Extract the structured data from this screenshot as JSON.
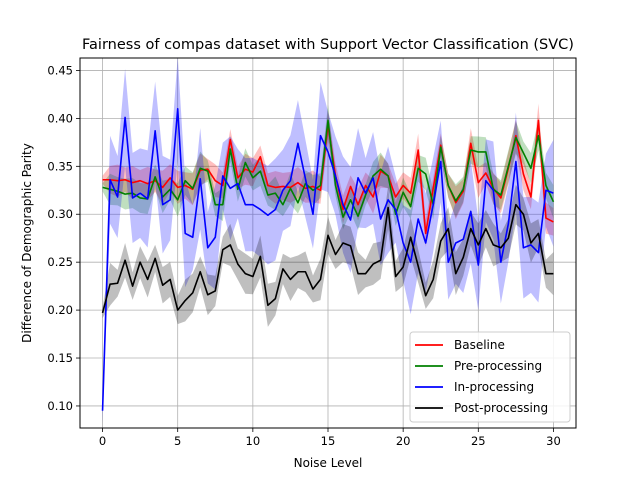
{
  "chart_data": {
    "type": "line",
    "title": "Fairness of compas dataset with Support Vector Classification (SVC)",
    "xlabel": "Noise Level",
    "ylabel": "Difference of Demographic Parity",
    "xlim": [
      -1.5,
      31.5
    ],
    "ylim": [
      0.077,
      0.463
    ],
    "xticks": [
      0,
      5,
      10,
      15,
      20,
      25,
      30
    ],
    "yticks": [
      0.1,
      0.15,
      0.2,
      0.25,
      0.3,
      0.35,
      0.4,
      0.45
    ],
    "xtick_labels": [
      "0",
      "5",
      "10",
      "15",
      "20",
      "25",
      "30"
    ],
    "ytick_labels": [
      "0.10",
      "0.15",
      "0.20",
      "0.25",
      "0.30",
      "0.35",
      "0.40",
      "0.45"
    ],
    "grid": true,
    "legend_position": "lower-right",
    "x": [
      0,
      0.5,
      1,
      1.5,
      2,
      2.5,
      3,
      3.5,
      4,
      4.5,
      5,
      5.5,
      6,
      6.5,
      7,
      7.5,
      8,
      8.5,
      9,
      9.5,
      10,
      10.5,
      11,
      11.5,
      12,
      12.5,
      13,
      13.5,
      14,
      14.5,
      15,
      15.5,
      16,
      16.5,
      17,
      17.5,
      18,
      18.5,
      19,
      19.5,
      20,
      20.5,
      21,
      21.5,
      22,
      22.5,
      23,
      23.5,
      24,
      24.5,
      25,
      25.5,
      26,
      26.5,
      27,
      27.5,
      28,
      28.5,
      29,
      29.5,
      30
    ],
    "series": [
      {
        "name": "Baseline",
        "color": "#ff0000",
        "values": [
          0.336,
          0.336,
          0.335,
          0.336,
          0.333,
          0.335,
          0.332,
          0.335,
          0.328,
          0.338,
          0.328,
          0.33,
          0.326,
          0.346,
          0.347,
          0.335,
          0.33,
          0.378,
          0.338,
          0.347,
          0.344,
          0.36,
          0.33,
          0.328,
          0.329,
          0.328,
          0.333,
          0.327,
          0.329,
          0.325,
          0.393,
          0.34,
          0.305,
          0.329,
          0.31,
          0.33,
          0.318,
          0.345,
          0.34,
          0.318,
          0.33,
          0.322,
          0.367,
          0.28,
          0.327,
          0.372,
          0.33,
          0.312,
          0.324,
          0.374,
          0.333,
          0.343,
          0.327,
          0.317,
          0.348,
          0.382,
          0.342,
          0.318,
          0.398,
          0.296,
          0.292
        ],
        "band": 0.014
      },
      {
        "name": "Pre-processing",
        "color": "#008000",
        "values": [
          0.328,
          0.326,
          0.324,
          0.321,
          0.322,
          0.317,
          0.316,
          0.339,
          0.318,
          0.326,
          0.315,
          0.335,
          0.327,
          0.348,
          0.345,
          0.31,
          0.31,
          0.368,
          0.326,
          0.354,
          0.338,
          0.345,
          0.32,
          0.322,
          0.31,
          0.327,
          0.312,
          0.332,
          0.325,
          0.33,
          0.398,
          0.33,
          0.297,
          0.315,
          0.298,
          0.32,
          0.34,
          0.347,
          0.34,
          0.3,
          0.323,
          0.308,
          0.348,
          0.342,
          0.31,
          0.37,
          0.33,
          0.314,
          0.326,
          0.367,
          0.365,
          0.365,
          0.326,
          0.32,
          0.35,
          0.38,
          0.364,
          0.348,
          0.382,
          0.33,
          0.313
        ],
        "band": 0.014
      },
      {
        "name": "In-processing",
        "color": "#0000ff",
        "values": [
          0.095,
          0.336,
          0.318,
          0.401,
          0.317,
          0.322,
          0.316,
          0.387,
          0.31,
          0.315,
          0.41,
          0.28,
          0.276,
          0.337,
          0.265,
          0.276,
          0.34,
          0.327,
          0.332,
          0.31,
          0.31,
          0.305,
          0.299,
          0.305,
          0.325,
          0.335,
          0.374,
          0.337,
          0.3,
          0.382,
          0.365,
          0.34,
          0.31,
          0.294,
          0.338,
          0.322,
          0.338,
          0.295,
          0.315,
          0.305,
          0.27,
          0.25,
          0.295,
          0.27,
          0.31,
          0.355,
          0.25,
          0.27,
          0.274,
          0.303,
          0.247,
          0.335,
          0.325,
          0.25,
          0.29,
          0.355,
          0.265,
          0.268,
          0.26,
          0.325,
          0.322
        ],
        "band": 0.045
      },
      {
        "name": "Post-processing",
        "color": "#000000",
        "values": [
          0.197,
          0.227,
          0.228,
          0.252,
          0.225,
          0.25,
          0.232,
          0.254,
          0.226,
          0.232,
          0.2,
          0.21,
          0.218,
          0.24,
          0.216,
          0.22,
          0.263,
          0.268,
          0.248,
          0.238,
          0.235,
          0.256,
          0.205,
          0.212,
          0.243,
          0.232,
          0.24,
          0.24,
          0.222,
          0.232,
          0.278,
          0.258,
          0.27,
          0.267,
          0.238,
          0.238,
          0.248,
          0.252,
          0.307,
          0.235,
          0.245,
          0.276,
          0.246,
          0.215,
          0.232,
          0.272,
          0.285,
          0.238,
          0.255,
          0.285,
          0.268,
          0.285,
          0.268,
          0.265,
          0.275,
          0.31,
          0.3,
          0.27,
          0.28,
          0.238,
          0.238
        ],
        "band": 0.018
      }
    ]
  }
}
